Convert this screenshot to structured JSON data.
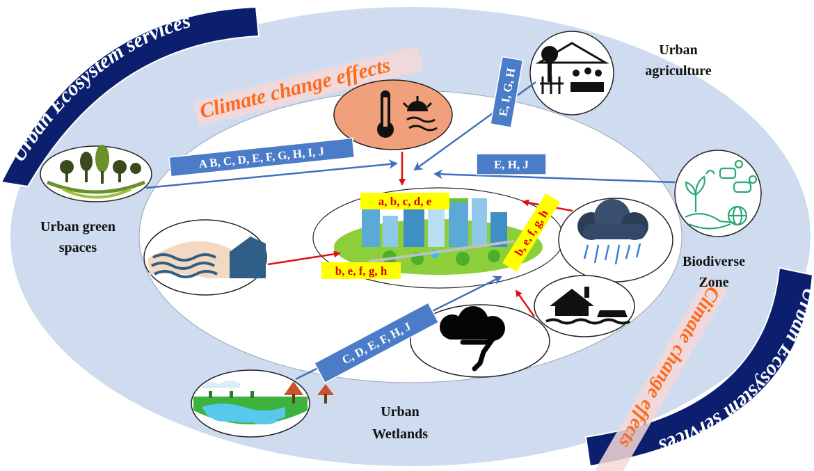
{
  "colors": {
    "outer_ring": "#cfdcef",
    "banner": "#0b1f6e",
    "blue_tag": "#4a7cc7",
    "red_arrow": "#e01010",
    "blue_arrow": "#3f6fc0",
    "orange_text": "#ff6a1a",
    "highlight": "#ffff00"
  },
  "banners": {
    "top_left": "Urban Ecosystem services",
    "bottom_right": "Urban Ecosystem services"
  },
  "climate_labels": {
    "top": "Climate change effects",
    "bottom_right": "Climate change effects"
  },
  "nodes": {
    "urban_agriculture": {
      "line1": "Urban",
      "line2": "agriculture",
      "icon": "greenhouse-icon"
    },
    "urban_green_spaces": {
      "line1": "Urban green",
      "line2": "spaces",
      "icon": "trees-icon"
    },
    "biodiverse_zone": {
      "line1": "Biodiverse",
      "line2": "Zone",
      "icon": "biodiversity-icon"
    },
    "urban_wetlands": {
      "line1": "Urban",
      "line2": "Wetlands",
      "icon": "wetland-icon"
    }
  },
  "hazards": {
    "heat": "heat-thermometer-icon",
    "sea_level": "sea-wave-icon",
    "rain": "rain-cloud-icon",
    "flood": "flooded-house-icon",
    "storm": "tornado-icon"
  },
  "center": {
    "icon": "smart-city-icon"
  },
  "service_tags": {
    "green": "A B, C, D, E, F, G, H, I, J",
    "agriculture": "E, I, G, H",
    "biodiverse": "E, H, J",
    "wetlands": "C, D, E, F, H, J"
  },
  "effect_tags": {
    "top": "a, b, c, d, e",
    "left": "b, e, f, g, h",
    "right": "b, e, f, g, h"
  }
}
